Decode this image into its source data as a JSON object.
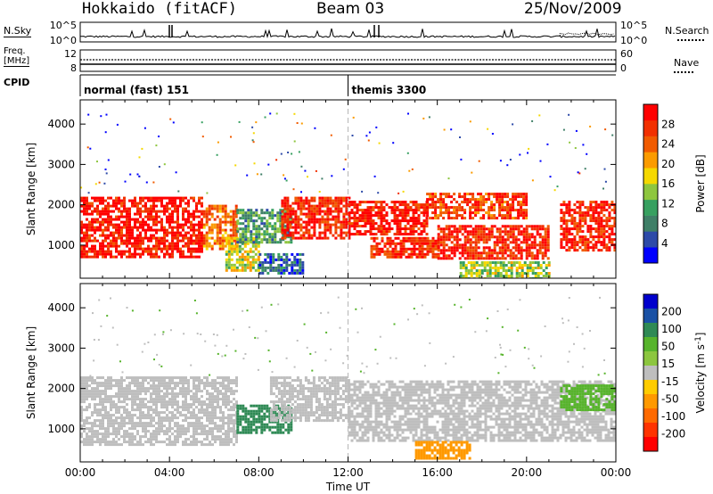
{
  "header": {
    "station": "Hokkaido (fitACF)",
    "beam": "Beam 03",
    "date": "25/Nov/2009"
  },
  "strips": {
    "nsky_label": "N.Sky",
    "nsky_ticks": [
      "10^5",
      "10^0"
    ],
    "nsearch_label": "N.Search",
    "nsearch_ticks": [
      "10^5",
      "10^0"
    ],
    "freq_label_line1": "Freq.",
    "freq_label_line2": "[MHz]",
    "freq_ticks": [
      "12",
      "8"
    ],
    "nave_label": "Nave",
    "nave_ticks": [
      "60",
      "0"
    ],
    "cpid_label": "CPID",
    "cpid_segments": [
      {
        "name": "normal (fast) 151",
        "start_hour": 0
      },
      {
        "name": "themis 3300",
        "start_hour": 12
      }
    ]
  },
  "colors": {
    "power_scale": [
      "#0000ff",
      "#2d4aa8",
      "#3f7f67",
      "#37a060",
      "#8ec63f",
      "#f5d800",
      "#fb9b00",
      "#f15b00",
      "#f23000",
      "#ff0000"
    ],
    "velocity_scale": [
      "#0000cd",
      "#1a51a5",
      "#2f8a55",
      "#57b42c",
      "#8cc63f",
      "#bebebe",
      "#ffcc00",
      "#ff9900",
      "#ff6a00",
      "#ff3300",
      "#ff0000"
    ],
    "ground_scatter": "#bebebe",
    "midnight_marker": "#bebebe"
  },
  "chart_data": [
    {
      "type": "heatmap",
      "name": "power_panel",
      "title": "",
      "xlabel": "Time UT",
      "ylabel": "Slant Range [km]",
      "x_ticks": [
        "00:00",
        "04:00",
        "08:00",
        "12:00",
        "16:00",
        "20:00",
        "00:00"
      ],
      "xlim_hours": [
        0,
        24
      ],
      "y_ticks": [
        1000,
        2000,
        3000,
        4000
      ],
      "ylim": [
        180,
        4600
      ],
      "colorbar_label": "Power [dB]",
      "colorbar_ticks": [
        4,
        8,
        12,
        16,
        20,
        24,
        28
      ],
      "colorbar_range": [
        0,
        30
      ],
      "regions": [
        {
          "t": [
            0.0,
            5.5
          ],
          "r": [
            700,
            2200
          ],
          "v": 28
        },
        {
          "t": [
            5.5,
            7.0
          ],
          "r": [
            900,
            2000
          ],
          "v": 22
        },
        {
          "t": [
            6.5,
            8.0
          ],
          "r": [
            400,
            1200
          ],
          "v": 16
        },
        {
          "t": [
            7.0,
            9.5
          ],
          "r": [
            1100,
            1900
          ],
          "v": 10
        },
        {
          "t": [
            8.0,
            10.0
          ],
          "r": [
            300,
            800
          ],
          "v": 6
        },
        {
          "t": [
            9.0,
            12.0
          ],
          "r": [
            1200,
            2200
          ],
          "v": 27
        },
        {
          "t": [
            12.0,
            15.5
          ],
          "r": [
            1300,
            2100
          ],
          "v": 28
        },
        {
          "t": [
            13.0,
            16.0
          ],
          "r": [
            700,
            1200
          ],
          "v": 26
        },
        {
          "t": [
            15.5,
            20.0
          ],
          "r": [
            1700,
            2300
          ],
          "v": 25
        },
        {
          "t": [
            16.0,
            21.0
          ],
          "r": [
            700,
            1500
          ],
          "v": 27
        },
        {
          "t": [
            17.0,
            21.0
          ],
          "r": [
            200,
            600
          ],
          "v": 14
        },
        {
          "t": [
            21.5,
            24.0
          ],
          "r": [
            900,
            2100
          ],
          "v": 27
        }
      ]
    },
    {
      "type": "heatmap",
      "name": "velocity_panel",
      "title": "",
      "xlabel": "Time UT",
      "ylabel": "Slant Range [km]",
      "x_ticks": [
        "00:00",
        "04:00",
        "08:00",
        "12:00",
        "16:00",
        "20:00",
        "00:00"
      ],
      "xlim_hours": [
        0,
        24
      ],
      "y_ticks": [
        1000,
        2000,
        3000,
        4000
      ],
      "ylim": [
        180,
        4600
      ],
      "colorbar_label": "Velocity [m s^-1]",
      "colorbar_ticks": [
        200,
        100,
        50,
        15,
        -15,
        -50,
        -100,
        -200
      ],
      "regions": [
        {
          "t": [
            0.0,
            7.0
          ],
          "r": [
            600,
            2300
          ],
          "v": 0
        },
        {
          "t": [
            7.0,
            9.5
          ],
          "r": [
            900,
            1600
          ],
          "v": 60
        },
        {
          "t": [
            8.5,
            12.0
          ],
          "r": [
            1200,
            2300
          ],
          "v": 0
        },
        {
          "t": [
            12.0,
            24.0
          ],
          "r": [
            700,
            2200
          ],
          "v": 0
        },
        {
          "t": [
            15.0,
            17.5
          ],
          "r": [
            300,
            700
          ],
          "v": -80
        },
        {
          "t": [
            21.5,
            24.0
          ],
          "r": [
            1500,
            2100
          ],
          "v": 40
        }
      ]
    }
  ]
}
